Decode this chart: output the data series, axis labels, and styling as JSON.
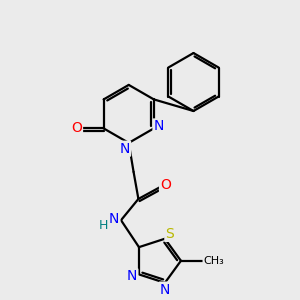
{
  "background_color": "#ebebeb",
  "bond_color": "#000000",
  "atom_colors": {
    "N": "#0000ff",
    "O": "#ff0000",
    "S": "#b8b800",
    "H": "#008080",
    "C": "#000000"
  },
  "lw": 1.6,
  "font_size": 10,
  "font_size_small": 8
}
